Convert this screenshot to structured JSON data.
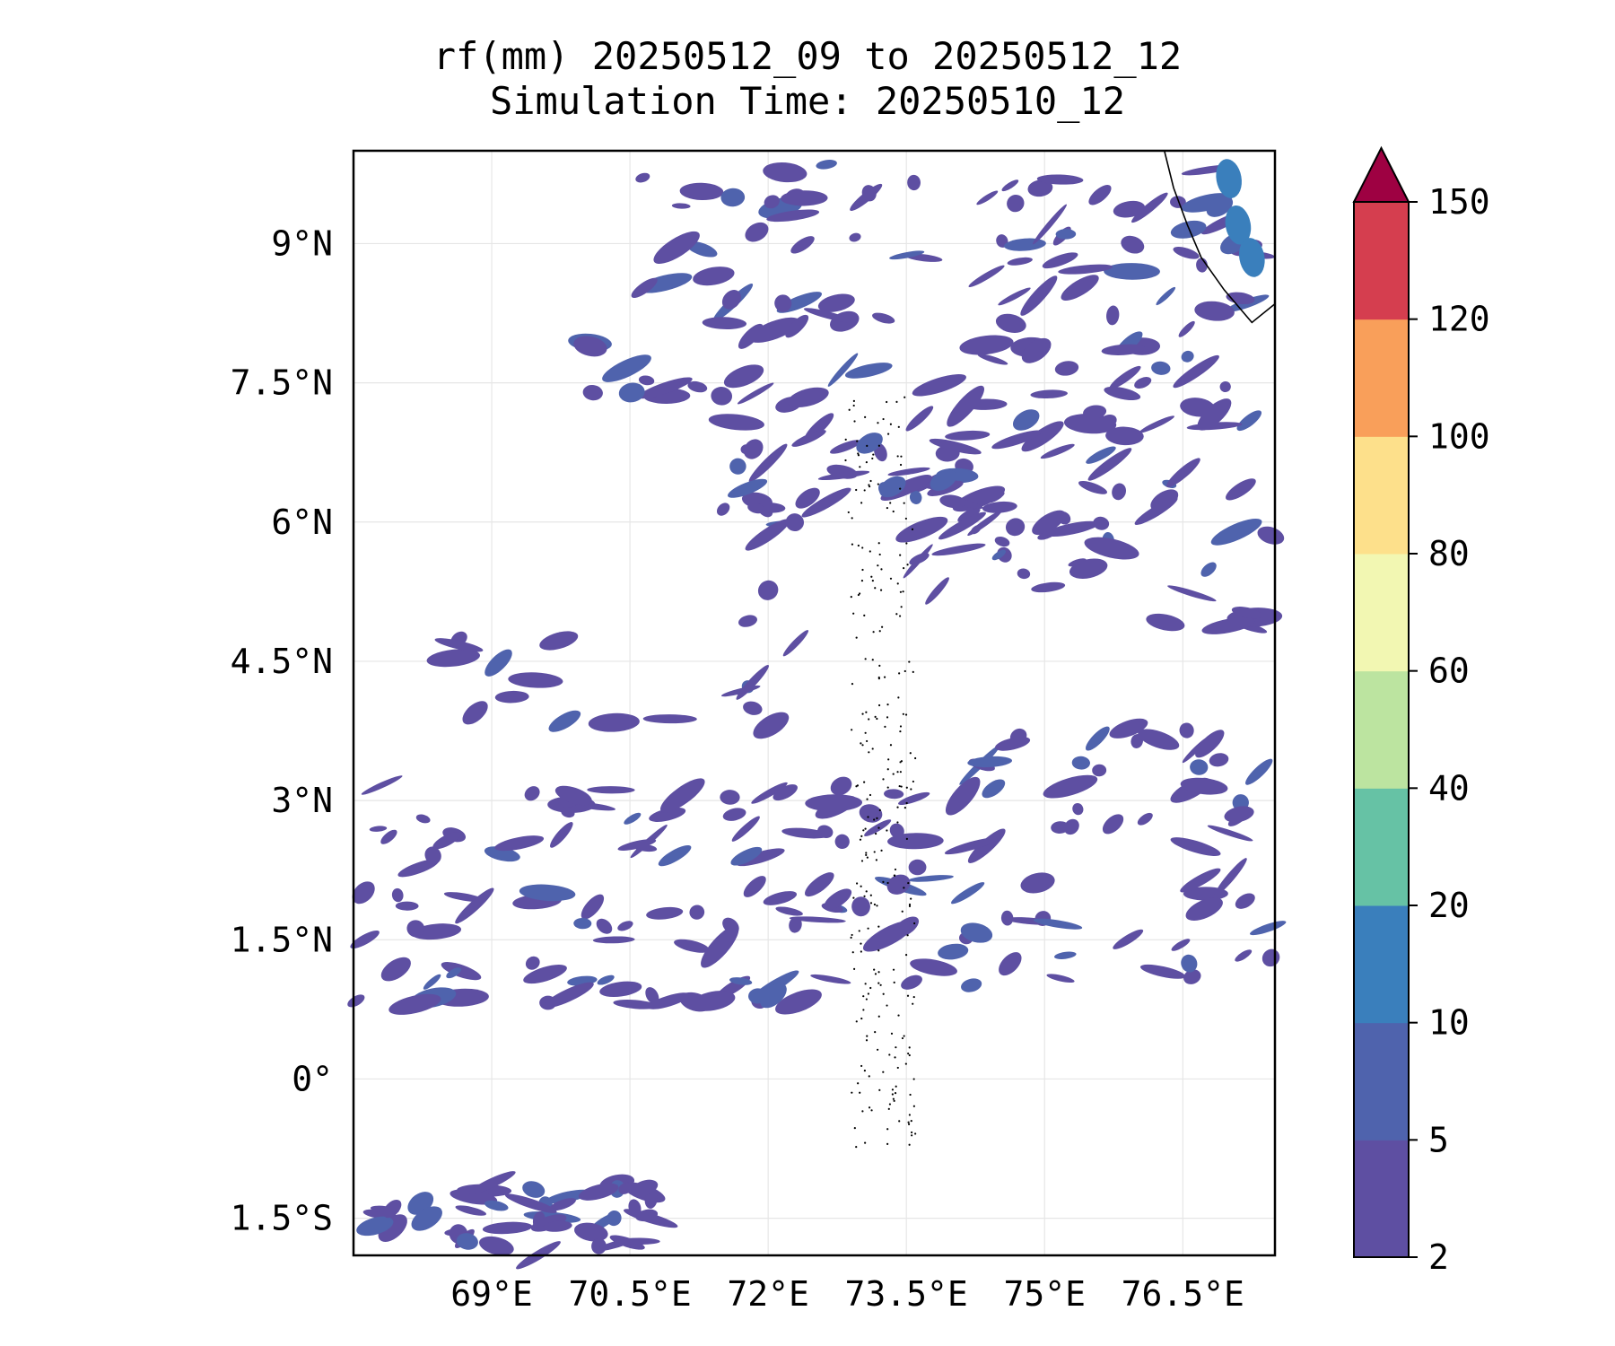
{
  "title": "rf(mm) 20250512_09 to 20250512_12",
  "subtitle": "Simulation Time: 20250510_12",
  "map": {
    "lon_range": [
      67.5,
      77.5
    ],
    "lat_range": [
      -1.9,
      10.0
    ],
    "gridlines": true,
    "lon_ticks": [
      69,
      70.5,
      72,
      73.5,
      75,
      76.5
    ],
    "lon_tick_labels": [
      "69°E",
      "70.5°E",
      "72°E",
      "73.5°E",
      "75°E",
      "76.5°E"
    ],
    "lat_ticks": [
      9,
      7.5,
      6,
      4.5,
      3,
      1.5,
      0,
      -1.5
    ],
    "lat_tick_labels": [
      "9°N",
      "7.5°N",
      "6°N",
      "4.5°N",
      "3°N",
      "1.5°N",
      "0°",
      "1.5°S"
    ]
  },
  "colorbar": {
    "levels": [
      2,
      5,
      10,
      20,
      40,
      60,
      80,
      100,
      120,
      150
    ],
    "tick_labels": [
      "2",
      "5",
      "10",
      "20",
      "40",
      "60",
      "80",
      "100",
      "120",
      "150"
    ],
    "colors": [
      "#5e4fa2",
      "#4f63ad",
      "#3a7fbc",
      "#66c2a5",
      "#bce4a0",
      "#f2f7b2",
      "#fde08b",
      "#f99f5a",
      "#d53e4f"
    ],
    "extend_color": "#9e0142",
    "extend": "max"
  }
}
